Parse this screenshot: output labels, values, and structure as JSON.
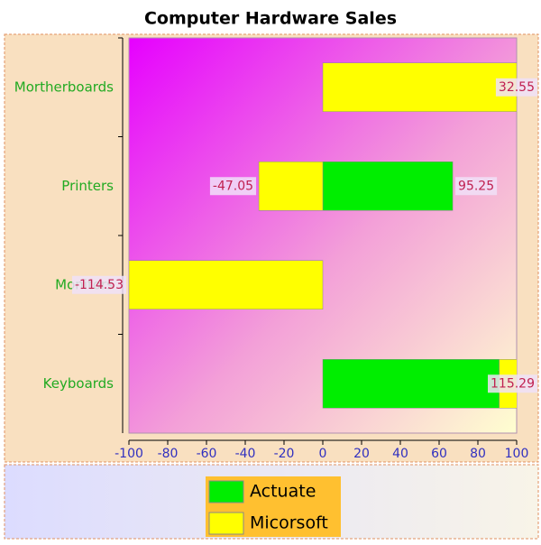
{
  "chart_data": {
    "type": "stacked-hbar",
    "title": "Computer Hardware Sales",
    "categories": [
      "Mortherboards",
      "Printers",
      "Monitors",
      "Keyboards"
    ],
    "series": [
      {
        "name": "Actuate",
        "color": "#00ee00",
        "values": [
          0,
          67,
          0,
          91
        ]
      },
      {
        "name": "Micorsoft",
        "color": "#ffff00",
        "values": [
          100,
          -33,
          -100,
          10
        ]
      }
    ],
    "data_labels": [
      {
        "category": 0,
        "value": 32.55
      },
      {
        "category": 1,
        "value": -47.05
      },
      {
        "category": 1,
        "value": 95.25
      },
      {
        "category": 2,
        "value": -114.53
      },
      {
        "category": 3,
        "value": 115.29
      }
    ],
    "xlim": [
      -100,
      100
    ],
    "xticks": [
      -100,
      -80,
      -60,
      -40,
      -20,
      0,
      20,
      40,
      60,
      80,
      100
    ],
    "legend": "bottom"
  }
}
